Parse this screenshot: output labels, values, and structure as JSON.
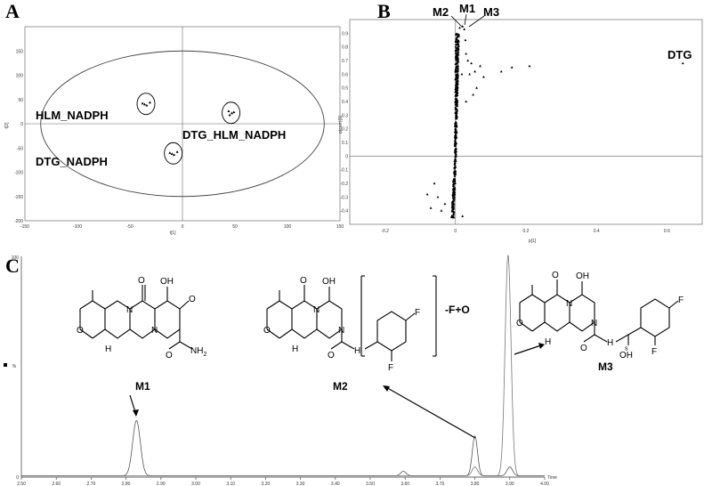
{
  "panels": {
    "a": "A",
    "b": "B",
    "c": "C"
  },
  "chart_data": [
    {
      "type": "scatter",
      "panel": "A",
      "xlabel": "t[1]",
      "ylabel": "t[2]",
      "xlim": [
        -150,
        150
      ],
      "ylim": [
        -200,
        200
      ],
      "xticks": [
        -150,
        -100,
        -50,
        0,
        50,
        100,
        150
      ],
      "yticks": [
        -200,
        -150,
        -100,
        -50,
        0,
        50,
        100,
        150
      ],
      "ellipse": {
        "cx": 0,
        "cy": 0,
        "rx": 135,
        "ry": 150
      },
      "groups": [
        {
          "name": "HLM_NADPH",
          "points": [
            [
              -38,
              42
            ],
            [
              -34,
              38
            ],
            [
              -31,
              44
            ],
            [
              -36,
              40
            ]
          ]
        },
        {
          "name": "DTG_HLM_NADPH",
          "points": [
            [
              44,
              26
            ],
            [
              47,
              22
            ],
            [
              49,
              24
            ],
            [
              45,
              18
            ]
          ]
        },
        {
          "name": "DTG_NADPH",
          "points": [
            [
              -12,
              -60
            ],
            [
              -8,
              -64
            ],
            [
              -5,
              -58
            ],
            [
              -10,
              -62
            ]
          ]
        }
      ]
    },
    {
      "type": "scatter",
      "panel": "B",
      "xlabel": "p[1]",
      "ylabel": "p(corr)[1]",
      "xlim": [
        -0.3,
        0.7
      ],
      "ylim": [
        -0.5,
        1.0
      ],
      "xticks": [
        -0.2,
        0,
        0.2,
        0.4,
        0.6
      ],
      "yticks": [
        -0.4,
        -0.3,
        -0.2,
        -0.1,
        0,
        0.1,
        0.2,
        0.3,
        0.4,
        0.5,
        0.6,
        0.7,
        0.8,
        0.9
      ],
      "labeled_points": [
        {
          "name": "M2",
          "x": 0.012,
          "y": 0.94
        },
        {
          "name": "M1",
          "x": 0.02,
          "y": 0.95
        },
        {
          "name": "M3",
          "x": 0.025,
          "y": 0.93
        },
        {
          "name": "DTG",
          "x": 0.645,
          "y": 0.68
        }
      ],
      "outliers": [
        [
          0.21,
          0.66
        ],
        [
          0.16,
          0.65
        ],
        [
          0.13,
          0.62
        ],
        [
          0.08,
          0.58
        ],
        [
          0.06,
          0.5
        ],
        [
          0.05,
          0.45
        ],
        [
          0.04,
          0.6
        ],
        [
          0.035,
          0.7
        ],
        [
          0.03,
          0.75
        ],
        [
          0.028,
          0.85
        ],
        [
          0.045,
          0.68
        ],
        [
          0.055,
          0.62
        ],
        [
          0.07,
          0.66
        ],
        [
          -0.06,
          -0.2
        ],
        [
          -0.07,
          -0.38
        ],
        [
          -0.05,
          -0.3
        ],
        [
          -0.04,
          -0.4
        ],
        [
          -0.08,
          -0.28
        ],
        [
          -0.03,
          -0.35
        ],
        [
          0.02,
          -0.44
        ],
        [
          0.03,
          0.4
        ],
        [
          0.018,
          0.6
        ]
      ]
    },
    {
      "type": "line",
      "panel": "C",
      "xlabel": "Time",
      "ylabel": "%",
      "xlim": [
        2.5,
        4.0
      ],
      "ylim": [
        0,
        100
      ],
      "xticks": [
        2.5,
        2.6,
        2.7,
        2.8,
        2.9,
        3.0,
        3.1,
        3.2,
        3.3,
        3.4,
        3.5,
        3.6,
        3.7,
        3.8,
        3.9,
        4.0
      ],
      "y_end_labels": [
        "0",
        "100"
      ],
      "series": [
        {
          "peaks": [
            {
              "rt": 2.83,
              "height": 25,
              "width": 0.011
            },
            {
              "rt": 3.8,
              "height": 18,
              "width": 0.0075
            },
            {
              "rt": 3.9,
              "height": 4,
              "width": 0.008
            },
            {
              "rt": 3.595,
              "height": 2,
              "width": 0.008
            }
          ],
          "baseline": 0.6
        },
        {
          "peaks": [
            {
              "rt": 3.895,
              "height": 100,
              "width": 0.0085
            },
            {
              "rt": 3.8,
              "height": 4,
              "width": 0.008
            }
          ],
          "baseline": 0.6
        }
      ],
      "structures": [
        {
          "name": "M1",
          "peak_rt": 2.83
        },
        {
          "name": "M2",
          "peak_rt": 3.8,
          "modification": "-F+O"
        },
        {
          "name": "M3",
          "peak_rt": 3.895
        }
      ],
      "atoms": {
        "O": "O",
        "OH": "OH",
        "N": "N",
        "H": "H",
        "NH2": "NH",
        "sub2": "2",
        "F": "F",
        "wavy": "ˢ"
      }
    }
  ]
}
